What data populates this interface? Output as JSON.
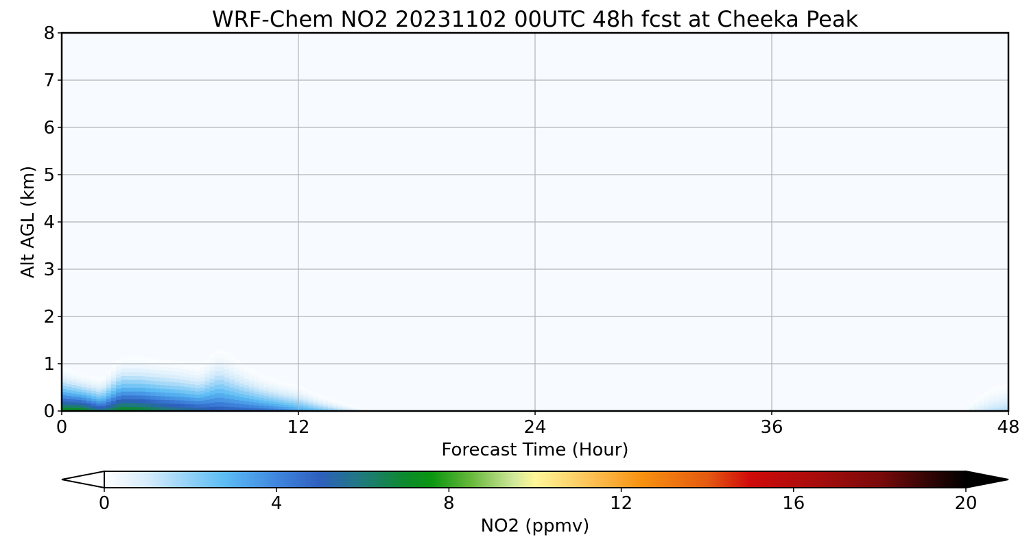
{
  "chart_data": {
    "type": "heatmap",
    "title": "WRF-Chem NO2  20231102 00UTC 48h fcst at Cheeka Peak",
    "xlabel": "Forecast Time (Hour)",
    "ylabel": "Alt AGL (km)",
    "xlim": [
      0,
      48
    ],
    "ylim": [
      0,
      8
    ],
    "x_ticks": [
      "0",
      "12",
      "24",
      "36",
      "48"
    ],
    "y_ticks": [
      "0",
      "1",
      "2",
      "3",
      "4",
      "5",
      "6",
      "7",
      "8"
    ],
    "grid": true,
    "colorbar": {
      "label": "NO2  (ppmv)",
      "range": [
        0,
        20
      ],
      "ticks": [
        "0",
        "4",
        "8",
        "12",
        "16",
        "20"
      ],
      "extend": "both",
      "palette_stops": [
        {
          "v": 0,
          "c": "#ffffff"
        },
        {
          "v": 1,
          "c": "#d6ecfb"
        },
        {
          "v": 2,
          "c": "#90d0f7"
        },
        {
          "v": 2.8,
          "c": "#5cbcf4"
        },
        {
          "v": 4,
          "c": "#3f86de"
        },
        {
          "v": 5,
          "c": "#2e5fbf"
        },
        {
          "v": 6,
          "c": "#1f7a7c"
        },
        {
          "v": 7,
          "c": "#0c8a2c"
        },
        {
          "v": 7.6,
          "c": "#0a9610"
        },
        {
          "v": 8.5,
          "c": "#66b83a"
        },
        {
          "v": 9.5,
          "c": "#cfe89a"
        },
        {
          "v": 10,
          "c": "#fff79a"
        },
        {
          "v": 11.5,
          "c": "#fbb94a"
        },
        {
          "v": 12.5,
          "c": "#f79010"
        },
        {
          "v": 14,
          "c": "#e45a10"
        },
        {
          "v": 15,
          "c": "#cf0a0a"
        },
        {
          "v": 16.5,
          "c": "#a80c0c"
        },
        {
          "v": 18,
          "c": "#7a0a0a"
        },
        {
          "v": 19,
          "c": "#3a0505"
        },
        {
          "v": 20,
          "c": "#000000"
        }
      ]
    },
    "field": {
      "background_value": 0.1,
      "hours": [
        0,
        1,
        2,
        3,
        4,
        5,
        6,
        7,
        8,
        9,
        10,
        11,
        12,
        13,
        14,
        15,
        16,
        46,
        47,
        48
      ],
      "top_km": [
        0.95,
        0.8,
        0.7,
        1.15,
        1.15,
        1.1,
        1.05,
        0.95,
        1.35,
        1.05,
        0.8,
        0.65,
        0.55,
        0.35,
        0.2,
        0.08,
        0.0,
        0.15,
        0.45,
        0.6
      ],
      "max_no2": [
        7.5,
        7.6,
        5.8,
        7.4,
        7.2,
        6.5,
        6.0,
        5.6,
        5.2,
        5.0,
        4.8,
        4.3,
        3.6,
        2.8,
        2.0,
        1.0,
        0.2,
        0.6,
        1.3,
        1.7
      ]
    }
  }
}
